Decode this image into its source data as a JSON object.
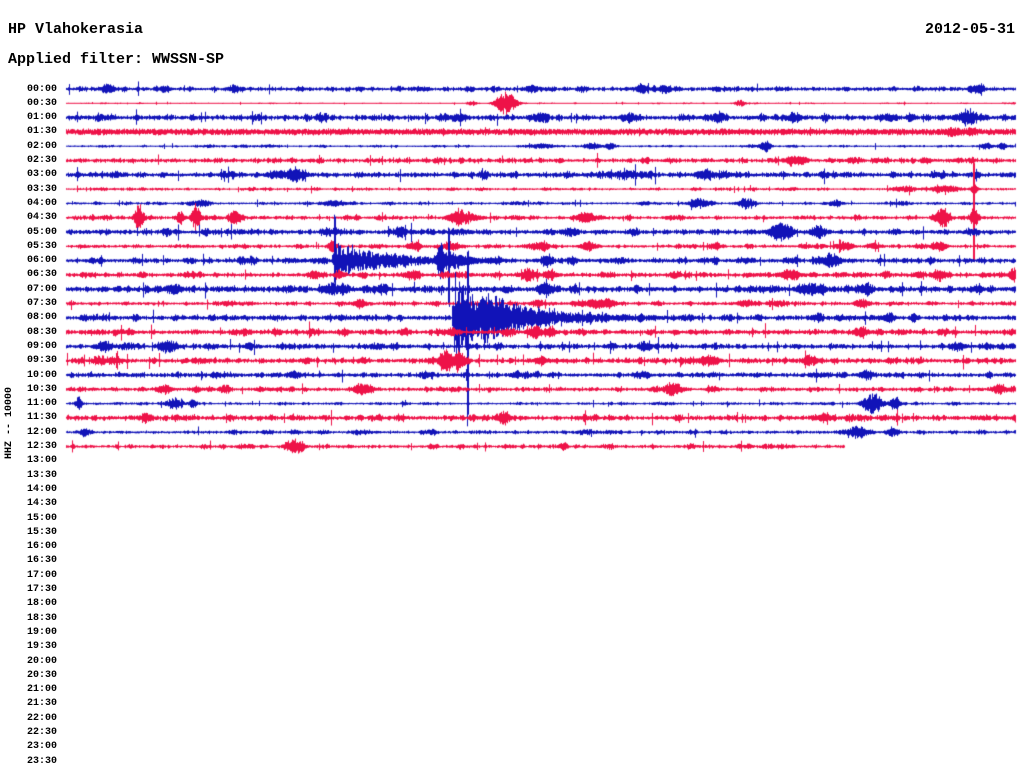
{
  "header": {
    "station": "HP Vlahokerasia",
    "date": "2012-05-31",
    "filter": "Applied filter: WWSSN-SP"
  },
  "axis": {
    "channel_label": "HHZ -- 10000",
    "row_interval": "30 min"
  },
  "chart_data": {
    "type": "helicorder",
    "title": "HP Vlahokerasia",
    "date": "2012-05-31",
    "filter": "WWSSN-SP",
    "channel": "HHZ",
    "gain_scale": 10000,
    "row_minutes": 30,
    "legend_position": "none",
    "grid": false,
    "colors": {
      "blue": "#1113b8",
      "red": "#ee1248",
      "text": "#000000",
      "background": "#ffffff"
    },
    "recording_stops_at_row": "12:30",
    "rows": [
      {
        "time": "00:00",
        "color": "blue",
        "active": true,
        "noise": 1.7,
        "events": [
          {
            "m": 1.3,
            "a": 3,
            "w": 5
          },
          {
            "m": 3.1,
            "a": 2.5,
            "w": 4
          },
          {
            "m": 5.3,
            "a": 2.5,
            "w": 4
          },
          {
            "m": 14.7,
            "a": 2.5,
            "w": 5
          },
          {
            "m": 18.2,
            "a": 3,
            "w": 5
          },
          {
            "m": 18.9,
            "a": 2.5,
            "w": 4
          },
          {
            "m": 28.8,
            "a": 3,
            "w": 5
          }
        ]
      },
      {
        "time": "00:30",
        "color": "red",
        "active": true,
        "noise": 0.5,
        "events": [
          {
            "m": 12.8,
            "a": 2,
            "w": 3
          },
          {
            "m": 13.9,
            "a": 9,
            "w": 7
          },
          {
            "m": 21.3,
            "a": 2.5,
            "w": 4
          }
        ]
      },
      {
        "time": "01:00",
        "color": "blue",
        "active": true,
        "noise": 2.1,
        "events": [
          {
            "m": 12.4,
            "a": 2.5,
            "w": 6
          },
          {
            "m": 15.0,
            "a": 2.5,
            "w": 5
          },
          {
            "m": 17.8,
            "a": 2.5,
            "w": 6
          },
          {
            "m": 20.5,
            "a": 2.5,
            "w": 6
          },
          {
            "m": 23.0,
            "a": 3,
            "w": 5
          },
          {
            "m": 26.0,
            "a": 2.5,
            "w": 6
          },
          {
            "m": 28.5,
            "a": 3.5,
            "w": 8
          }
        ]
      },
      {
        "time": "01:30",
        "color": "red",
        "active": true,
        "noise": 2.3,
        "solid": true,
        "events": [
          {
            "m": 28.0,
            "a": 2,
            "w": 5
          },
          {
            "m": 28.6,
            "a": 2,
            "w": 4
          }
        ]
      },
      {
        "time": "02:00",
        "color": "blue",
        "active": true,
        "noise": 0.8,
        "events": [
          {
            "m": 15.0,
            "a": 2,
            "w": 10
          },
          {
            "m": 16.6,
            "a": 2.5,
            "w": 6
          },
          {
            "m": 17.2,
            "a": 2.5,
            "w": 4
          },
          {
            "m": 22.1,
            "a": 4.5,
            "w": 4
          },
          {
            "m": 29.1,
            "a": 2.5,
            "w": 4
          },
          {
            "m": 29.6,
            "a": 2.5,
            "w": 3
          }
        ]
      },
      {
        "time": "02:30",
        "color": "red",
        "active": true,
        "noise": 1.8,
        "events": [
          {
            "m": 23.0,
            "a": 3.5,
            "w": 6
          }
        ]
      },
      {
        "time": "03:00",
        "color": "blue",
        "active": true,
        "noise": 2.0,
        "events": [
          {
            "m": 6.6,
            "a": 3,
            "w": 5
          },
          {
            "m": 7.2,
            "a": 5,
            "w": 6
          },
          {
            "m": 20.2,
            "a": 3,
            "w": 5
          },
          {
            "m": 20.8,
            "a": 2.5,
            "w": 4
          }
        ]
      },
      {
        "time": "03:30",
        "color": "red",
        "active": true,
        "noise": 1.0,
        "events": [
          {
            "m": 26.5,
            "a": 2,
            "w": 8
          },
          {
            "m": 27.8,
            "a": 2.5,
            "w": 10
          },
          {
            "m": 28.7,
            "a": 3,
            "w": 3
          }
        ]
      },
      {
        "time": "04:00",
        "color": "blue",
        "active": true,
        "noise": 1.0,
        "events": [
          {
            "m": 4.2,
            "a": 1.8,
            "w": 8
          },
          {
            "m": 8.5,
            "a": 1.8,
            "w": 8
          },
          {
            "m": 20.0,
            "a": 3.5,
            "w": 7
          },
          {
            "m": 21.5,
            "a": 4,
            "w": 6
          },
          {
            "m": 24.3,
            "a": 2,
            "w": 5
          }
        ]
      },
      {
        "time": "04:30",
        "color": "red",
        "active": true,
        "noise": 1.4,
        "events": [
          {
            "m": 2.3,
            "a": 11,
            "w": 3
          },
          {
            "m": 3.6,
            "a": 4.5,
            "w": 3
          },
          {
            "m": 4.1,
            "a": 11,
            "w": 3
          },
          {
            "m": 5.3,
            "a": 5,
            "w": 4
          },
          {
            "m": 12.5,
            "a": 6,
            "w": 8
          },
          {
            "m": 16.4,
            "a": 3.5,
            "w": 6
          },
          {
            "m": 27.7,
            "a": 7,
            "w": 5
          },
          {
            "m": 28.7,
            "a": 8,
            "w": 3
          }
        ],
        "spikes": [
          {
            "m": 28.7,
            "up": 48,
            "down": 34
          }
        ]
      },
      {
        "time": "05:00",
        "color": "blue",
        "active": true,
        "noise": 2.0,
        "events": [
          {
            "m": 10.6,
            "a": 3.5,
            "w": 4
          },
          {
            "m": 15.9,
            "a": 2.5,
            "w": 5
          },
          {
            "m": 22.6,
            "a": 6.5,
            "w": 7
          },
          {
            "m": 23.8,
            "a": 4,
            "w": 6
          }
        ]
      },
      {
        "time": "05:30",
        "color": "red",
        "active": true,
        "noise": 1.3,
        "events": [
          {
            "m": 8.4,
            "a": 4.5,
            "w": 3
          },
          {
            "m": 11.0,
            "a": 3,
            "w": 5
          },
          {
            "m": 12.2,
            "a": 3,
            "w": 6
          },
          {
            "m": 14.9,
            "a": 3,
            "w": 8
          },
          {
            "m": 16.5,
            "a": 3,
            "w": 6
          },
          {
            "m": 20.5,
            "a": 2.5,
            "w": 4
          },
          {
            "m": 24.6,
            "a": 3.5,
            "w": 6
          },
          {
            "m": 25.5,
            "a": 2.5,
            "w": 4
          },
          {
            "m": 27.6,
            "a": 3.5,
            "w": 5
          }
        ]
      },
      {
        "time": "06:00",
        "color": "blue",
        "active": true,
        "noise": 1.9,
        "events": [
          {
            "m": 15.2,
            "a": 4.5,
            "w": 4
          },
          {
            "m": 16.0,
            "a": 3.5,
            "w": 3
          },
          {
            "m": 24.2,
            "a": 5,
            "w": 6
          }
        ],
        "quakes": [
          {
            "m": 8.5,
            "a": 14,
            "w": 45
          },
          {
            "m": 11.8,
            "a": 13,
            "w": 16
          }
        ],
        "spikes": [
          {
            "m": 8.5,
            "up": 36,
            "down": 14
          },
          {
            "m": 12.1,
            "up": 24,
            "down": 36
          }
        ]
      },
      {
        "time": "06:30",
        "color": "red",
        "active": true,
        "noise": 1.8,
        "events": [
          {
            "m": 7.8,
            "a": 3,
            "w": 4
          },
          {
            "m": 8.6,
            "a": 3,
            "w": 3
          },
          {
            "m": 11.0,
            "a": 3.5,
            "w": 4
          },
          {
            "m": 14.6,
            "a": 5,
            "w": 5
          },
          {
            "m": 15.3,
            "a": 4,
            "w": 4
          },
          {
            "m": 22.9,
            "a": 2.5,
            "w": 8
          },
          {
            "m": 27.6,
            "a": 4,
            "w": 5
          },
          {
            "m": 29.9,
            "a": 4,
            "w": 3
          }
        ]
      },
      {
        "time": "07:00",
        "color": "blue",
        "active": true,
        "noise": 2.3,
        "events": [
          {
            "m": 3.4,
            "a": 3.5,
            "w": 6
          },
          {
            "m": 8.4,
            "a": 4,
            "w": 6
          },
          {
            "m": 10.0,
            "a": 3,
            "w": 4
          },
          {
            "m": 15.2,
            "a": 3.5,
            "w": 6
          },
          {
            "m": 23.5,
            "a": 4,
            "w": 8
          },
          {
            "m": 25.3,
            "a": 3.5,
            "w": 5
          }
        ]
      },
      {
        "time": "07:30",
        "color": "red",
        "active": true,
        "noise": 1.5,
        "events": [
          {
            "m": 9.3,
            "a": 3,
            "w": 4
          },
          {
            "m": 14.9,
            "a": 3,
            "w": 4
          },
          {
            "m": 16.8,
            "a": 3.5,
            "w": 10
          },
          {
            "m": 21.5,
            "a": 2.5,
            "w": 6
          },
          {
            "m": 25.2,
            "a": 3,
            "w": 4
          }
        ]
      },
      {
        "time": "08:00",
        "color": "blue",
        "active": true,
        "noise": 2.0,
        "events": [
          {
            "m": 26.0,
            "a": 3,
            "w": 4
          }
        ],
        "quakes": [
          {
            "m": 12.3,
            "a": 38,
            "w": 26
          },
          {
            "m": 13.2,
            "a": 12,
            "w": 60
          }
        ],
        "spikes": [
          {
            "m": 12.7,
            "up": 52,
            "down": 78
          }
        ]
      },
      {
        "time": "08:30",
        "color": "red",
        "active": true,
        "noise": 2.0,
        "events": [
          {
            "m": 12.2,
            "a": 3,
            "w": 4
          },
          {
            "m": 14.8,
            "a": 4,
            "w": 5
          },
          {
            "m": 15.3,
            "a": 3,
            "w": 4
          },
          {
            "m": 25.1,
            "a": 3.5,
            "w": 5
          }
        ]
      },
      {
        "time": "09:00",
        "color": "blue",
        "active": true,
        "noise": 1.9,
        "events": [
          {
            "m": 1.2,
            "a": 4,
            "w": 5
          },
          {
            "m": 3.2,
            "a": 5,
            "w": 6
          },
          {
            "m": 18.3,
            "a": 3,
            "w": 4
          },
          {
            "m": 28.2,
            "a": 3,
            "w": 5
          }
        ]
      },
      {
        "time": "09:30",
        "color": "red",
        "active": true,
        "noise": 2.0,
        "events": [
          {
            "m": 12.0,
            "a": 8,
            "w": 5
          },
          {
            "m": 12.4,
            "a": 6,
            "w": 3
          },
          {
            "m": 15.0,
            "a": 3,
            "w": 4
          },
          {
            "m": 20.3,
            "a": 4,
            "w": 6
          },
          {
            "m": 23.5,
            "a": 4,
            "w": 5
          }
        ]
      },
      {
        "time": "10:00",
        "color": "blue",
        "active": true,
        "noise": 1.8,
        "events": [
          {
            "m": 7.2,
            "a": 2.5,
            "w": 5
          },
          {
            "m": 14.2,
            "a": 2.5,
            "w": 4
          },
          {
            "m": 25.3,
            "a": 3,
            "w": 5
          }
        ]
      },
      {
        "time": "10:30",
        "color": "red",
        "active": true,
        "noise": 1.6,
        "events": [
          {
            "m": 3.1,
            "a": 3,
            "w": 5
          },
          {
            "m": 5.0,
            "a": 3,
            "w": 4
          },
          {
            "m": 9.3,
            "a": 5,
            "w": 5
          },
          {
            "m": 19.1,
            "a": 5,
            "w": 5
          },
          {
            "m": 29.5,
            "a": 4,
            "w": 5
          }
        ]
      },
      {
        "time": "11:00",
        "color": "blue",
        "active": true,
        "noise": 1.0,
        "events": [
          {
            "m": 0.4,
            "a": 6,
            "w": 2
          },
          {
            "m": 3.4,
            "a": 4,
            "w": 5
          },
          {
            "m": 4.0,
            "a": 3.5,
            "w": 3
          },
          {
            "m": 25.5,
            "a": 8,
            "w": 7
          },
          {
            "m": 26.2,
            "a": 5,
            "w": 3
          }
        ]
      },
      {
        "time": "11:30",
        "color": "red",
        "active": true,
        "noise": 2.0,
        "events": [
          {
            "m": 2.5,
            "a": 3,
            "w": 4
          },
          {
            "m": 13.8,
            "a": 4,
            "w": 5
          },
          {
            "m": 24.0,
            "a": 2.5,
            "w": 6
          }
        ]
      },
      {
        "time": "12:00",
        "color": "blue",
        "active": true,
        "noise": 1.3,
        "events": [
          {
            "m": 0.6,
            "a": 3,
            "w": 4
          },
          {
            "m": 25.0,
            "a": 4.5,
            "w": 8
          },
          {
            "m": 26.1,
            "a": 3.5,
            "w": 4
          }
        ]
      },
      {
        "time": "12:30",
        "color": "red",
        "active": true,
        "noise": 1.4,
        "end_min": 24.6,
        "events": [
          {
            "m": 7.2,
            "a": 6,
            "w": 6
          },
          {
            "m": 15.7,
            "a": 3,
            "w": 3
          }
        ]
      },
      {
        "time": "13:00",
        "color": "blue",
        "active": false
      },
      {
        "time": "13:30",
        "color": "red",
        "active": false
      },
      {
        "time": "14:00",
        "color": "blue",
        "active": false
      },
      {
        "time": "14:30",
        "color": "red",
        "active": false
      },
      {
        "time": "15:00",
        "color": "blue",
        "active": false
      },
      {
        "time": "15:30",
        "color": "red",
        "active": false
      },
      {
        "time": "16:00",
        "color": "blue",
        "active": false
      },
      {
        "time": "16:30",
        "color": "red",
        "active": false
      },
      {
        "time": "17:00",
        "color": "blue",
        "active": false
      },
      {
        "time": "17:30",
        "color": "red",
        "active": false
      },
      {
        "time": "18:00",
        "color": "blue",
        "active": false
      },
      {
        "time": "18:30",
        "color": "red",
        "active": false
      },
      {
        "time": "19:00",
        "color": "blue",
        "active": false
      },
      {
        "time": "19:30",
        "color": "red",
        "active": false
      },
      {
        "time": "20:00",
        "color": "blue",
        "active": false
      },
      {
        "time": "20:30",
        "color": "red",
        "active": false
      },
      {
        "time": "21:00",
        "color": "blue",
        "active": false
      },
      {
        "time": "21:30",
        "color": "red",
        "active": false
      },
      {
        "time": "22:00",
        "color": "blue",
        "active": false
      },
      {
        "time": "22:30",
        "color": "red",
        "active": false
      },
      {
        "time": "23:00",
        "color": "blue",
        "active": false
      },
      {
        "time": "23:30",
        "color": "red",
        "active": false
      }
    ]
  }
}
